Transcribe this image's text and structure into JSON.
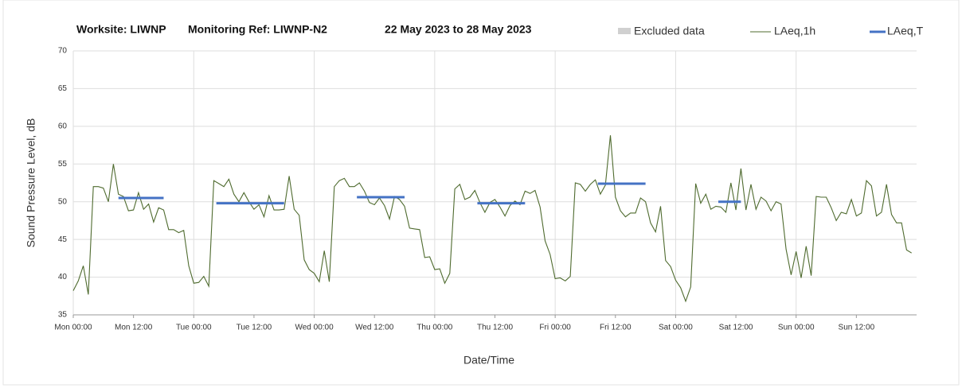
{
  "chart_data": {
    "type": "line",
    "title": [
      "Worksite: LIWNP",
      "Monitoring Ref: LIWNP-N2",
      "22 May 2023 to 28 May 2023"
    ],
    "xlabel": "Date/Time",
    "ylabel": "Sound Pressure Level, dB",
    "excluded": {
      "name": "Excluded data",
      "color": "#d0d0d0"
    },
    "x": [
      0,
      1,
      2,
      3,
      4,
      5,
      6,
      7,
      8,
      9,
      10,
      11,
      12,
      13,
      14,
      15,
      16,
      17,
      18,
      19,
      20,
      21,
      22,
      23,
      24,
      25,
      26,
      27,
      28,
      29,
      30,
      31,
      32,
      33,
      34,
      35,
      36,
      37,
      38,
      39,
      40,
      41,
      42,
      43,
      44,
      45,
      46,
      47,
      48,
      49,
      50,
      51,
      52,
      53,
      54,
      55,
      56,
      57,
      58,
      59,
      60,
      61,
      62,
      63,
      64,
      65,
      66,
      67,
      68,
      69,
      70,
      71,
      72,
      73,
      74,
      75,
      76,
      77,
      78,
      79,
      80,
      81,
      82,
      83,
      84,
      85,
      86,
      87,
      88,
      89,
      90,
      91,
      92,
      93,
      94,
      95,
      96,
      97,
      98,
      99,
      100,
      101,
      102,
      103,
      104,
      105,
      106,
      107,
      108,
      109,
      110,
      111,
      112,
      113,
      114,
      115,
      116,
      117,
      118,
      119,
      120,
      121,
      122,
      123,
      124,
      125,
      126,
      127,
      128,
      129,
      130,
      131,
      132,
      133,
      134,
      135,
      136,
      137,
      138,
      139,
      140,
      141,
      142,
      143,
      144,
      145,
      146,
      147,
      148,
      149,
      150,
      151,
      152,
      153,
      154,
      155,
      156,
      157,
      158,
      159,
      160,
      161,
      162,
      163,
      164,
      165,
      166,
      167
    ],
    "series": [
      {
        "name": "LAeq,1h",
        "color": "#4f6b2f",
        "values": [
          38.2,
          39.5,
          41.5,
          37.7,
          52.0,
          52.0,
          51.8,
          50.0,
          55.0,
          51.0,
          50.7,
          48.8,
          48.9,
          51.2,
          49.0,
          49.7,
          47.3,
          49.2,
          48.9,
          46.3,
          46.3,
          45.9,
          46.2,
          41.5,
          39.2,
          39.3,
          40.1,
          38.8,
          52.8,
          52.4,
          52.0,
          53.0,
          51.0,
          50.0,
          51.2,
          50.0,
          49.0,
          49.6,
          48.0,
          50.8,
          48.9,
          48.9,
          49.0,
          53.4,
          49.0,
          48.2,
          42.3,
          41.0,
          40.5,
          39.4,
          43.5,
          39.4,
          52.0,
          52.8,
          53.1,
          52.0,
          52.0,
          52.5,
          51.4,
          49.9,
          49.6,
          50.5,
          49.5,
          47.7,
          50.7,
          50.3,
          49.4,
          46.5,
          46.4,
          46.3,
          42.6,
          42.7,
          41.0,
          41.1,
          39.2,
          40.5,
          51.7,
          52.3,
          50.3,
          50.6,
          51.5,
          49.9,
          48.6,
          49.9,
          50.3,
          49.3,
          48.1,
          49.5,
          50.1,
          49.6,
          51.4,
          51.1,
          51.5,
          49.3,
          44.8,
          43.0,
          39.8,
          39.9,
          39.5,
          40.1,
          52.5,
          52.3,
          51.4,
          52.3,
          52.9,
          51.0,
          52.2,
          58.8,
          50.6,
          48.8,
          48.0,
          48.5,
          48.5,
          50.5,
          50.0,
          47.2,
          46.0,
          49.4,
          42.2,
          41.4,
          39.6,
          38.6,
          36.8,
          38.7,
          52.4,
          49.8,
          51.0,
          49.0,
          49.4,
          49.3,
          48.6,
          52.5,
          48.9,
          54.4,
          48.9,
          52.3,
          49.0,
          50.6,
          50.1,
          48.8,
          50.0,
          49.7,
          43.7,
          40.3,
          43.4,
          39.9,
          44.1,
          40.2,
          50.7,
          50.6,
          50.6,
          49.2,
          47.5,
          48.6,
          48.4,
          50.3,
          48.1,
          48.5,
          52.8,
          52.1,
          48.1,
          48.6,
          52.3,
          48.3,
          47.2,
          47.2,
          43.6,
          43.2
        ]
      },
      {
        "name": "LAeq,T",
        "color": "#4472c4",
        "segments": true,
        "x": [
          9,
          18,
          28.5,
          42,
          56.5,
          66,
          80.5,
          90,
          104.5,
          114,
          128.5,
          133
        ],
        "values": [
          50.5,
          50.5,
          49.8,
          49.8,
          50.6,
          50.6,
          49.8,
          49.8,
          52.4,
          52.4,
          50.0,
          50.0
        ]
      }
    ],
    "xlim": [
      0,
      168
    ],
    "xticks": [
      {
        "value": 0,
        "label": "Mon 00:00"
      },
      {
        "value": 12,
        "label": "Mon 12:00"
      },
      {
        "value": 24,
        "label": "Tue 00:00"
      },
      {
        "value": 36,
        "label": "Tue 12:00"
      },
      {
        "value": 48,
        "label": "Wed 00:00"
      },
      {
        "value": 60,
        "label": "Wed 12:00"
      },
      {
        "value": 72,
        "label": "Thu 00:00"
      },
      {
        "value": 84,
        "label": "Thu 12:00"
      },
      {
        "value": 96,
        "label": "Fri 00:00"
      },
      {
        "value": 108,
        "label": "Fri 12:00"
      },
      {
        "value": 120,
        "label": "Sat 00:00"
      },
      {
        "value": 132,
        "label": "Sat 12:00"
      },
      {
        "value": 144,
        "label": "Sun 00:00"
      },
      {
        "value": 156,
        "label": "Sun 12:00"
      }
    ],
    "ylim": [
      35,
      70
    ],
    "yticks": [
      35,
      40,
      45,
      50,
      55,
      60,
      65,
      70
    ],
    "grid": true
  }
}
